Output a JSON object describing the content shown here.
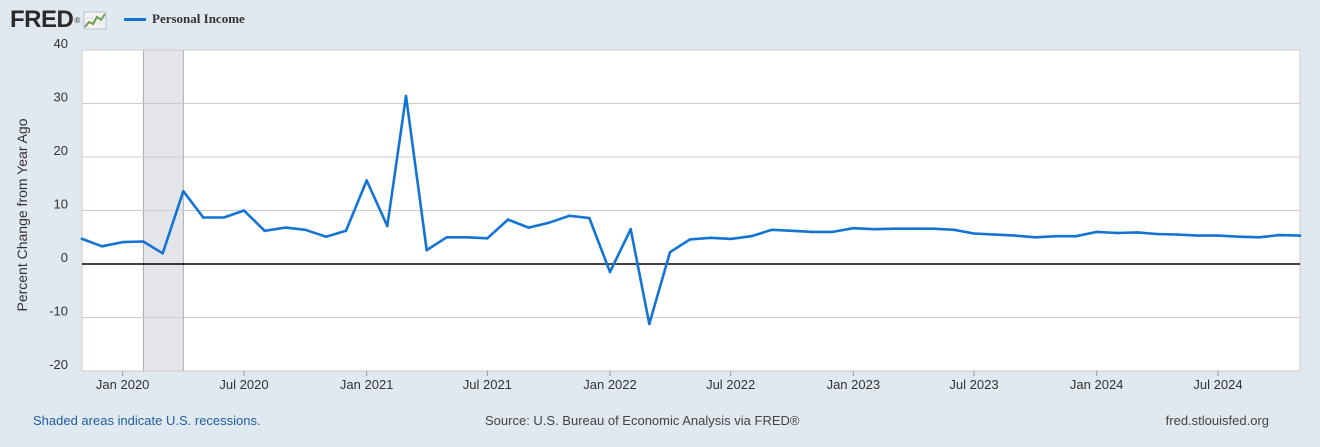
{
  "header": {
    "logo_text": "FRED",
    "logo_mark": "®",
    "logo_icon": "line-graph-icon"
  },
  "footer": {
    "recession_note": "Shaded areas indicate U.S. recessions.",
    "source": "Source: U.S. Bureau of Economic Analysis via FRED®",
    "site": "fred.stlouisfed.org"
  },
  "colors": {
    "series": "#1474d4",
    "recession": "#e3e5e8",
    "background": "#e1e9f0",
    "plot": "#ffffff",
    "grid": "#cccccc",
    "zero_line": "#000000"
  },
  "chart_data": {
    "type": "line",
    "ylabel": "Percent Change from Year Ago",
    "ylim": [
      -20,
      40
    ],
    "yticks": [
      -20,
      -10,
      0,
      10,
      20,
      30,
      40
    ],
    "xlim": [
      "2019-11-01",
      "2024-11-01"
    ],
    "xticks": [
      {
        "date": "2020-01-01",
        "label": "Jan 2020"
      },
      {
        "date": "2020-07-01",
        "label": "Jul 2020"
      },
      {
        "date": "2021-01-01",
        "label": "Jan 2021"
      },
      {
        "date": "2021-07-01",
        "label": "Jul 2021"
      },
      {
        "date": "2022-01-01",
        "label": "Jan 2022"
      },
      {
        "date": "2022-07-01",
        "label": "Jul 2022"
      },
      {
        "date": "2023-01-01",
        "label": "Jan 2023"
      },
      {
        "date": "2023-07-01",
        "label": "Jul 2023"
      },
      {
        "date": "2024-01-01",
        "label": "Jan 2024"
      },
      {
        "date": "2024-07-01",
        "label": "Jul 2024"
      }
    ],
    "grid": true,
    "legend": "top-left",
    "recessions": [
      {
        "start": "2020-02-01",
        "end": "2020-04-01"
      }
    ],
    "series": [
      {
        "name": "Personal Income",
        "x": [
          "2019-11-01",
          "2019-12-01",
          "2020-01-01",
          "2020-02-01",
          "2020-03-01",
          "2020-04-01",
          "2020-05-01",
          "2020-06-01",
          "2020-07-01",
          "2020-08-01",
          "2020-09-01",
          "2020-10-01",
          "2020-11-01",
          "2020-12-01",
          "2021-01-01",
          "2021-02-01",
          "2021-03-01",
          "2021-04-01",
          "2021-05-01",
          "2021-06-01",
          "2021-07-01",
          "2021-08-01",
          "2021-09-01",
          "2021-10-01",
          "2021-11-01",
          "2021-12-01",
          "2022-01-01",
          "2022-02-01",
          "2022-03-01",
          "2022-04-01",
          "2022-05-01",
          "2022-06-01",
          "2022-07-01",
          "2022-08-01",
          "2022-09-01",
          "2022-10-01",
          "2022-11-01",
          "2022-12-01",
          "2023-01-01",
          "2023-02-01",
          "2023-03-01",
          "2023-04-01",
          "2023-05-01",
          "2023-06-01",
          "2023-07-01",
          "2023-08-01",
          "2023-09-01",
          "2023-10-01",
          "2023-11-01",
          "2023-12-01",
          "2024-01-01",
          "2024-02-01",
          "2024-03-01",
          "2024-04-01",
          "2024-05-01",
          "2024-06-01",
          "2024-07-01",
          "2024-08-01",
          "2024-09-01",
          "2024-10-01",
          "2024-11-01"
        ],
        "values": [
          4.7,
          3.3,
          4.1,
          4.2,
          2.0,
          13.6,
          8.7,
          8.7,
          10.0,
          6.2,
          6.8,
          6.4,
          5.1,
          6.2,
          15.6,
          7.1,
          31.4,
          2.6,
          5.0,
          5.0,
          4.8,
          8.3,
          6.8,
          7.7,
          9.0,
          8.6,
          -1.5,
          6.5,
          -11.2,
          2.2,
          4.6,
          4.9,
          4.7,
          5.2,
          6.4,
          6.2,
          6.0,
          6.0,
          6.7,
          6.5,
          6.6,
          6.6,
          6.6,
          6.4,
          5.7,
          5.5,
          5.3,
          5.0,
          5.2,
          5.2,
          6.0,
          5.8,
          5.9,
          5.6,
          5.5,
          5.3,
          5.3,
          5.1,
          5.0,
          5.4,
          5.3
        ]
      }
    ]
  }
}
